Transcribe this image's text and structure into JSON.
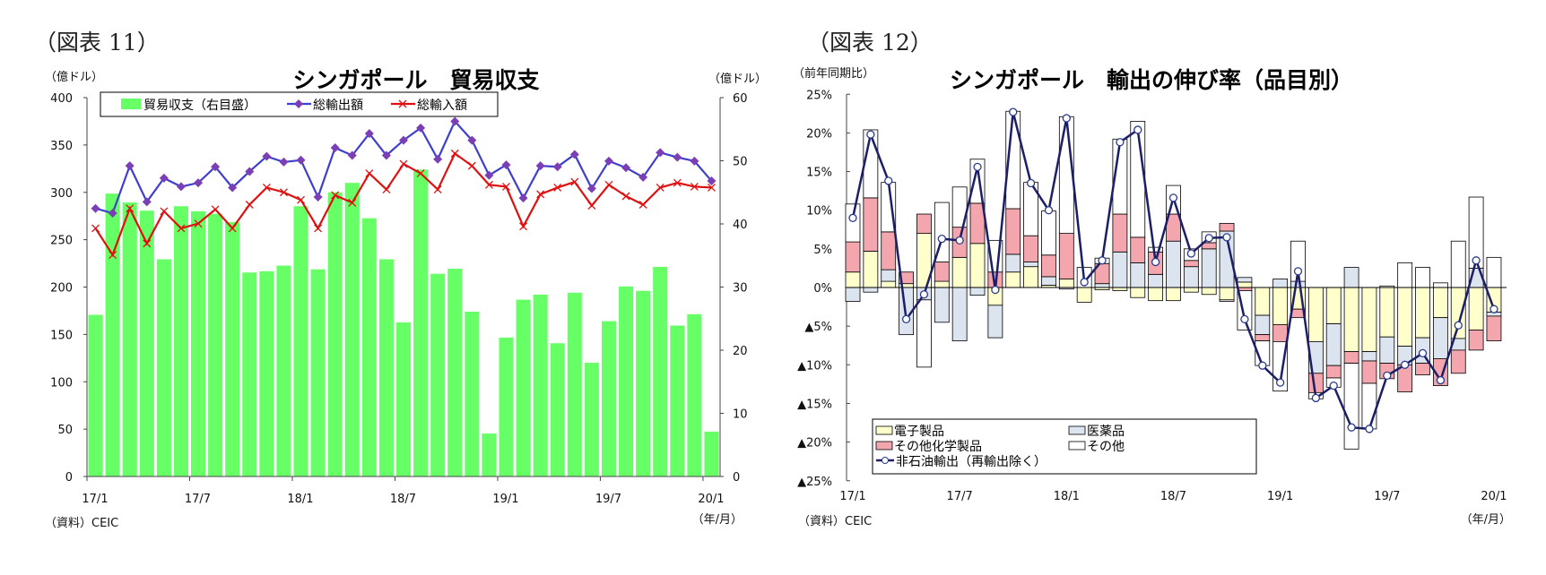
{
  "chart_data": [
    {
      "type": "bar+line",
      "figure_label": "（図表 11）",
      "title": "シンガポール　貿易収支",
      "ylabel_left": "（億ドル）",
      "ylabel_right": "（億ドル）",
      "xlabel": "（年/月）",
      "source": "（資料）CEIC",
      "ylim_left": [
        0,
        400
      ],
      "ylim_right": [
        0,
        60
      ],
      "yticks_left": [
        "0",
        "50",
        "100",
        "150",
        "200",
        "250",
        "300",
        "350",
        "400"
      ],
      "yticks_right": [
        "0",
        "10",
        "20",
        "30",
        "40",
        "50",
        "60"
      ],
      "xtick_labels": [
        "17/1",
        "17/7",
        "18/1",
        "18/7",
        "19/1",
        "19/7",
        "20/1"
      ],
      "months": [
        "17/1",
        "17/2",
        "17/3",
        "17/4",
        "17/5",
        "17/6",
        "17/7",
        "17/8",
        "17/9",
        "17/10",
        "17/11",
        "17/12",
        "18/1",
        "18/2",
        "18/3",
        "18/4",
        "18/5",
        "18/6",
        "18/7",
        "18/8",
        "18/9",
        "18/10",
        "18/11",
        "18/12",
        "19/1",
        "19/2",
        "19/3",
        "19/4",
        "19/5",
        "19/6",
        "19/7",
        "19/8",
        "19/9",
        "19/10",
        "19/11",
        "19/12",
        "20/1"
      ],
      "legend_placement": "top",
      "series": [
        {
          "name": "貿易収支（右目盛）",
          "type": "bar",
          "axis": "right",
          "color": "#66FF66",
          "values": [
            25.6,
            44.8,
            43.4,
            42.1,
            34.4,
            42.8,
            42.0,
            41.6,
            40.3,
            32.3,
            32.5,
            33.4,
            42.8,
            32.8,
            45.0,
            46.5,
            40.9,
            34.4,
            24.4,
            48.6,
            32.1,
            32.9,
            26.1,
            6.8,
            22.0,
            28.0,
            28.8,
            21.1,
            29.1,
            18.0,
            24.6,
            30.1,
            29.4,
            33.2,
            23.9,
            25.7,
            7.1
          ]
        },
        {
          "name": "総輸出額",
          "type": "line",
          "axis": "left",
          "color": "#3F3FCF",
          "marker_color": "#7B3FB5",
          "marker": "diamond",
          "values": [
            283,
            278,
            328,
            290,
            315,
            306,
            310,
            327,
            305,
            322,
            338,
            332,
            334,
            295,
            347,
            339,
            362,
            339,
            355,
            368,
            335,
            375,
            355,
            318,
            329,
            294,
            328,
            327,
            340,
            304,
            333,
            326,
            316,
            342,
            337,
            333,
            312
          ]
        },
        {
          "name": "総輸入額",
          "type": "line",
          "axis": "left",
          "color": "#E01010",
          "marker": "x",
          "values": [
            262,
            234,
            283,
            246,
            280,
            262,
            267,
            282,
            262,
            287,
            305,
            300,
            292,
            262,
            297,
            289,
            320,
            303,
            330,
            320,
            303,
            341,
            328,
            308,
            306,
            264,
            298,
            305,
            311,
            286,
            308,
            296,
            287,
            305,
            310,
            306,
            305
          ]
        }
      ]
    },
    {
      "type": "stacked-bar+line",
      "figure_label": "（図表 12）",
      "title": "シンガポール　輸出の伸び率（品目別）",
      "ylabel": "（前年同期比）",
      "xlabel": "（年/月）",
      "source": "（資料）CEIC",
      "ylim": [
        -25,
        25
      ],
      "yticks": [
        "25%",
        "20%",
        "15%",
        "10%",
        "5%",
        "0%",
        "▲5%",
        "▲10%",
        "▲15%",
        "▲20%",
        "▲25%"
      ],
      "xtick_labels": [
        "17/1",
        "17/7",
        "18/1",
        "18/7",
        "19/1",
        "19/7",
        "20/1"
      ],
      "legend_placement": "bottom-left",
      "series": [
        {
          "name": "電子製品",
          "type": "bar",
          "color": "#FFFFCC",
          "values": [
            2.0,
            4.7,
            0.8,
            0.5,
            7.0,
            0.8,
            3.9,
            5.7,
            -2.3,
            2.0,
            2.7,
            0.3,
            1.1,
            -1.9,
            -0.3,
            -0.4,
            -1.3,
            -1.7,
            -1.7,
            -0.6,
            -0.9,
            -1.6,
            0.7,
            -3.6,
            -4.8,
            -2.8,
            -7.0,
            -4.7,
            -8.3,
            -8.3,
            -6.4,
            -7.6,
            -6.5,
            -3.9,
            -6.6,
            -5.5,
            -3.2
          ]
        },
        {
          "name": "医薬品",
          "type": "bar",
          "color": "#DCE4F0",
          "values": [
            -1.8,
            -0.6,
            1.5,
            -6.1,
            -1.6,
            -4.5,
            -6.9,
            -1.0,
            -4.2,
            2.3,
            0.6,
            1.1,
            -0.2,
            0.0,
            0.5,
            4.6,
            3.2,
            1.7,
            6.0,
            2.7,
            5.0,
            7.3,
            0.6,
            -2.5,
            1.1,
            0.8,
            -4.1,
            -5.4,
            2.6,
            -1.2,
            -3.4,
            -2.4,
            -3.3,
            -5.3,
            -1.5,
            2.5,
            -0.5
          ]
        },
        {
          "name": "その他化学製品",
          "type": "bar",
          "color": "#F4A6AE",
          "values": [
            3.9,
            6.9,
            4.9,
            1.5,
            2.5,
            2.5,
            3.9,
            5.2,
            2.0,
            5.9,
            3.4,
            2.8,
            5.9,
            0.0,
            2.6,
            4.9,
            3.3,
            2.9,
            3.5,
            0.8,
            0.8,
            1.0,
            -0.4,
            -0.8,
            -2.2,
            -1.1,
            -2.5,
            -1.6,
            -1.5,
            -2.9,
            -2.0,
            -3.5,
            -1.5,
            -3.5,
            -3.0,
            -2.6,
            -3.2
          ]
        },
        {
          "name": "その他",
          "type": "bar",
          "color": "#FFFFFF",
          "values": [
            4.9,
            8.8,
            6.4,
            0.0,
            -8.7,
            7.7,
            5.2,
            5.7,
            4.1,
            12.6,
            6.9,
            5.7,
            15.1,
            2.6,
            0.7,
            9.7,
            15.0,
            0.6,
            3.7,
            1.5,
            1.4,
            -0.2,
            -5.1,
            -3.2,
            -6.4,
            5.2,
            -0.8,
            -1.2,
            -11.1,
            -5.9,
            0.2,
            3.2,
            2.6,
            0.6,
            6.0,
            9.2,
            3.9
          ]
        },
        {
          "name": "非石油輸出（再輸出除く）",
          "type": "line",
          "color": "#1C1F66",
          "marker": "circle",
          "values": [
            9.0,
            19.8,
            13.8,
            -4.1,
            -0.9,
            6.3,
            6.1,
            15.6,
            -0.3,
            22.7,
            13.5,
            10.0,
            21.9,
            0.7,
            3.5,
            18.8,
            20.4,
            3.3,
            11.6,
            4.4,
            6.4,
            6.5,
            -4.1,
            -10.1,
            -12.3,
            2.1,
            -14.3,
            -12.7,
            -18.1,
            -18.3,
            -11.4,
            -10.0,
            -8.5,
            -12.0,
            -4.9,
            3.5,
            -2.8
          ]
        }
      ]
    }
  ]
}
